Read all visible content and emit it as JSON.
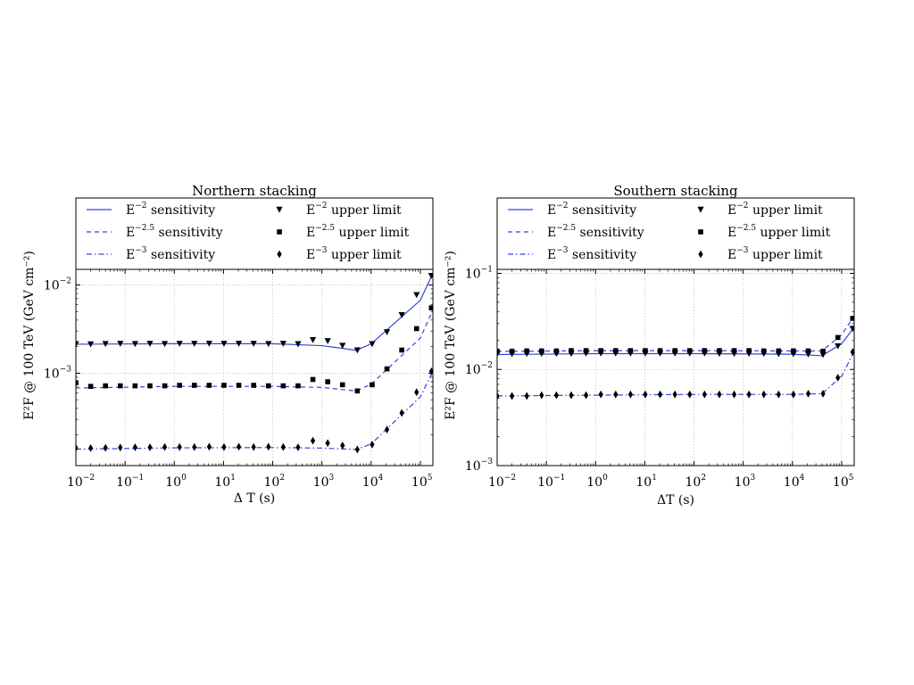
{
  "chart_data": [
    {
      "type": "line",
      "title": "Northern stacking",
      "xlabel": "Δ T (s)",
      "ylabel": "E²F @ 100 TeV (GeV cm⁻²)",
      "xscale": "log",
      "yscale": "log",
      "xlim": [
        0.01,
        180000
      ],
      "ylim": [
        9e-05,
        0.015
      ],
      "grid": true,
      "legend_position": "top",
      "x_ticks": [
        {
          "base": "10",
          "exp": "−2",
          "value": 0.01
        },
        {
          "base": "10",
          "exp": "−1",
          "value": 0.1
        },
        {
          "base": "10",
          "exp": "0",
          "value": 1
        },
        {
          "base": "10",
          "exp": "1",
          "value": 10
        },
        {
          "base": "10",
          "exp": "2",
          "value": 100
        },
        {
          "base": "10",
          "exp": "3",
          "value": 1000
        },
        {
          "base": "10",
          "exp": "4",
          "value": 10000
        },
        {
          "base": "10",
          "exp": "5",
          "value": 100000
        }
      ],
      "y_ticks": [
        {
          "base": "10",
          "exp": "−3",
          "value": 0.001
        },
        {
          "base": "10",
          "exp": "−2",
          "value": 0.01
        }
      ],
      "legend": [
        {
          "kind": "line",
          "style": "solid",
          "base": "E",
          "exp": "−2",
          "rest": " sensitivity"
        },
        {
          "kind": "marker",
          "marker": "triangle",
          "base": "E",
          "exp": "−2",
          "rest": " upper limit"
        },
        {
          "kind": "line",
          "style": "dashed",
          "base": "E",
          "exp": "−2.5",
          "rest": " sensitivity"
        },
        {
          "kind": "marker",
          "marker": "square",
          "base": "E",
          "exp": "−2.5",
          "rest": " upper limit"
        },
        {
          "kind": "line",
          "style": "dashdot",
          "base": "E",
          "exp": "−3",
          "rest": " sensitivity"
        },
        {
          "kind": "marker",
          "marker": "diamond",
          "base": "E",
          "exp": "−3",
          "rest": " upper limit"
        }
      ],
      "series": [
        {
          "kind": "line",
          "style": "solid",
          "x": [
            0.01,
            1,
            100,
            1000,
            5000,
            10000,
            100000,
            180000
          ],
          "values": [
            0.00213,
            0.00216,
            0.00216,
            0.00205,
            0.00182,
            0.00215,
            0.0067,
            0.0136
          ]
        },
        {
          "kind": "line",
          "style": "dashed",
          "x": [
            0.01,
            1,
            100,
            1000,
            5000,
            10000,
            100000,
            180000
          ],
          "values": [
            0.00068,
            0.00071,
            0.00071,
            0.00069,
            0.00063,
            0.00075,
            0.0025,
            0.0052
          ]
        },
        {
          "kind": "line",
          "style": "dashdot",
          "x": [
            0.01,
            1,
            100,
            1000,
            5000,
            10000,
            100000,
            180000
          ],
          "values": [
            0.000138,
            0.000143,
            0.000144,
            0.000142,
            0.000137,
            0.000158,
            0.00054,
            0.00105
          ]
        },
        {
          "kind": "scatter",
          "marker": "triangle",
          "x": [
            0.01,
            0.02,
            0.04,
            0.08,
            0.16,
            0.32,
            0.64,
            1.28,
            2.56,
            5.12,
            10.24,
            20.48,
            40.96,
            81.92,
            163.84,
            327.68,
            655.36,
            1310.72,
            2621.44,
            5242.88,
            10485.76,
            20971.52,
            41943.04,
            83886.08,
            167772.16
          ],
          "values": [
            0.00214,
            0.00213,
            0.00215,
            0.00216,
            0.00215,
            0.00216,
            0.00215,
            0.00216,
            0.00216,
            0.00217,
            0.00216,
            0.00216,
            0.00216,
            0.00215,
            0.00216,
            0.00214,
            0.00238,
            0.00232,
            0.00205,
            0.00182,
            0.00214,
            0.00292,
            0.00456,
            0.0077,
            0.0127
          ]
        },
        {
          "kind": "scatter",
          "marker": "square",
          "x": [
            0.01,
            0.02,
            0.04,
            0.08,
            0.16,
            0.32,
            0.64,
            1.28,
            2.56,
            5.12,
            10.24,
            20.48,
            40.96,
            81.92,
            163.84,
            327.68,
            655.36,
            1310.72,
            2621.44,
            5242.88,
            10485.76,
            20971.52,
            41943.04,
            83886.08,
            167772.16
          ],
          "values": [
            0.00078,
            0.00071,
            0.00072,
            0.00072,
            0.00072,
            0.00072,
            0.00072,
            0.00073,
            0.00073,
            0.00073,
            0.00073,
            0.00073,
            0.00073,
            0.00072,
            0.00072,
            0.00072,
            0.00085,
            0.0008,
            0.00074,
            0.00063,
            0.00074,
            0.00112,
            0.00183,
            0.0032,
            0.0055
          ]
        },
        {
          "kind": "scatter",
          "marker": "diamond",
          "x": [
            0.01,
            0.02,
            0.04,
            0.08,
            0.16,
            0.32,
            0.64,
            1.28,
            2.56,
            5.12,
            10.24,
            20.48,
            40.96,
            81.92,
            163.84,
            327.68,
            655.36,
            1310.72,
            2621.44,
            5242.88,
            10485.76,
            20971.52,
            41943.04,
            83886.08,
            167772.16
          ],
          "values": [
            0.000143,
            0.000142,
            0.000143,
            0.000144,
            0.000145,
            0.000145,
            0.000146,
            0.000146,
            0.000146,
            0.000147,
            0.000146,
            0.000147,
            0.000146,
            0.000147,
            0.000146,
            0.000145,
            0.000172,
            0.000162,
            0.000152,
            0.000137,
            0.000156,
            0.00023,
            0.000355,
            0.00061,
            0.00105
          ]
        }
      ]
    },
    {
      "type": "line",
      "title": "Southern stacking",
      "xlabel": "ΔT (s)",
      "ylabel": "E²F @ 100 TeV (GeV cm⁻²)",
      "xscale": "log",
      "yscale": "log",
      "xlim": [
        0.01,
        180000
      ],
      "ylim": [
        0.001,
        0.11
      ],
      "grid": true,
      "legend_position": "top",
      "x_ticks": [
        {
          "base": "10",
          "exp": "−2",
          "value": 0.01
        },
        {
          "base": "10",
          "exp": "−1",
          "value": 0.1
        },
        {
          "base": "10",
          "exp": "0",
          "value": 1
        },
        {
          "base": "10",
          "exp": "1",
          "value": 10
        },
        {
          "base": "10",
          "exp": "2",
          "value": 100
        },
        {
          "base": "10",
          "exp": "3",
          "value": 1000
        },
        {
          "base": "10",
          "exp": "4",
          "value": 10000
        },
        {
          "base": "10",
          "exp": "5",
          "value": 100000
        }
      ],
      "y_ticks": [
        {
          "base": "10",
          "exp": "−3",
          "value": 0.001
        },
        {
          "base": "10",
          "exp": "−2",
          "value": 0.01
        },
        {
          "base": "10",
          "exp": "−1",
          "value": 0.1
        }
      ],
      "legend": [
        {
          "kind": "line",
          "style": "solid",
          "base": "E",
          "exp": "−2",
          "rest": " sensitivity"
        },
        {
          "kind": "marker",
          "marker": "triangle",
          "base": "E",
          "exp": "−2",
          "rest": " upper limit"
        },
        {
          "kind": "line",
          "style": "dashed",
          "base": "E",
          "exp": "−2.5",
          "rest": " sensitivity"
        },
        {
          "kind": "marker",
          "marker": "square",
          "base": "E",
          "exp": "−2.5",
          "rest": " upper limit"
        },
        {
          "kind": "line",
          "style": "dashdot",
          "base": "E",
          "exp": "−3",
          "rest": " sensitivity"
        },
        {
          "kind": "marker",
          "marker": "diamond",
          "base": "E",
          "exp": "−3",
          "rest": " upper limit"
        }
      ],
      "series": [
        {
          "kind": "line",
          "style": "solid",
          "x": [
            0.01,
            1,
            100,
            10000,
            40000,
            100000,
            180000
          ],
          "values": [
            0.0143,
            0.0146,
            0.0146,
            0.0144,
            0.0139,
            0.0185,
            0.0275
          ]
        },
        {
          "kind": "line",
          "style": "dashed",
          "x": [
            0.01,
            1,
            100,
            10000,
            40000,
            100000,
            180000
          ],
          "values": [
            0.0154,
            0.0157,
            0.0157,
            0.0156,
            0.0156,
            0.023,
            0.036
          ]
        },
        {
          "kind": "line",
          "style": "dashdot",
          "x": [
            0.01,
            1,
            100,
            10000,
            40000,
            100000,
            180000
          ],
          "values": [
            0.0053,
            0.0054,
            0.0055,
            0.0055,
            0.0056,
            0.0085,
            0.0155
          ]
        },
        {
          "kind": "scatter",
          "marker": "triangle",
          "x": [
            0.01,
            0.02,
            0.04,
            0.08,
            0.16,
            0.32,
            0.64,
            1.28,
            2.56,
            5.12,
            10.24,
            20.48,
            40.96,
            81.92,
            163.84,
            327.68,
            655.36,
            1310.72,
            2621.44,
            5242.88,
            10485.76,
            20971.52,
            41943.04,
            83886.08,
            167772.16
          ],
          "values": [
            0.0145,
            0.0145,
            0.0146,
            0.0146,
            0.0146,
            0.0146,
            0.0147,
            0.0147,
            0.0147,
            0.0147,
            0.0147,
            0.0147,
            0.0147,
            0.0147,
            0.0147,
            0.0146,
            0.0146,
            0.0146,
            0.0146,
            0.0145,
            0.0145,
            0.0144,
            0.0142,
            0.0175,
            0.0265
          ]
        },
        {
          "kind": "scatter",
          "marker": "square",
          "x": [
            0.01,
            0.02,
            0.04,
            0.08,
            0.16,
            0.32,
            0.64,
            1.28,
            2.56,
            5.12,
            10.24,
            20.48,
            40.96,
            81.92,
            163.84,
            327.68,
            655.36,
            1310.72,
            2621.44,
            5242.88,
            10485.76,
            20971.52,
            41943.04,
            83886.08,
            167772.16
          ],
          "values": [
            0.0155,
            0.0155,
            0.0156,
            0.0156,
            0.0156,
            0.0157,
            0.0157,
            0.0157,
            0.0157,
            0.0157,
            0.0157,
            0.0157,
            0.0157,
            0.0157,
            0.0157,
            0.0157,
            0.0157,
            0.0157,
            0.0156,
            0.0156,
            0.0156,
            0.0156,
            0.0155,
            0.0215,
            0.034
          ]
        },
        {
          "kind": "scatter",
          "marker": "diamond",
          "x": [
            0.01,
            0.02,
            0.04,
            0.08,
            0.16,
            0.32,
            0.64,
            1.28,
            2.56,
            5.12,
            10.24,
            20.48,
            40.96,
            81.92,
            163.84,
            327.68,
            655.36,
            1310.72,
            2621.44,
            5242.88,
            10485.76,
            20971.52,
            41943.04,
            83886.08,
            167772.16
          ],
          "values": [
            0.0053,
            0.0053,
            0.0053,
            0.0054,
            0.0054,
            0.0054,
            0.0054,
            0.0055,
            0.0055,
            0.0055,
            0.0055,
            0.0055,
            0.0055,
            0.0055,
            0.0055,
            0.0055,
            0.0055,
            0.0055,
            0.0055,
            0.0055,
            0.0055,
            0.0056,
            0.0056,
            0.0082,
            0.0152
          ]
        }
      ]
    }
  ],
  "colors": {
    "line": "#3344dd",
    "marker": "#000000",
    "grid": "#c8c8c8",
    "frame": "#000000"
  }
}
